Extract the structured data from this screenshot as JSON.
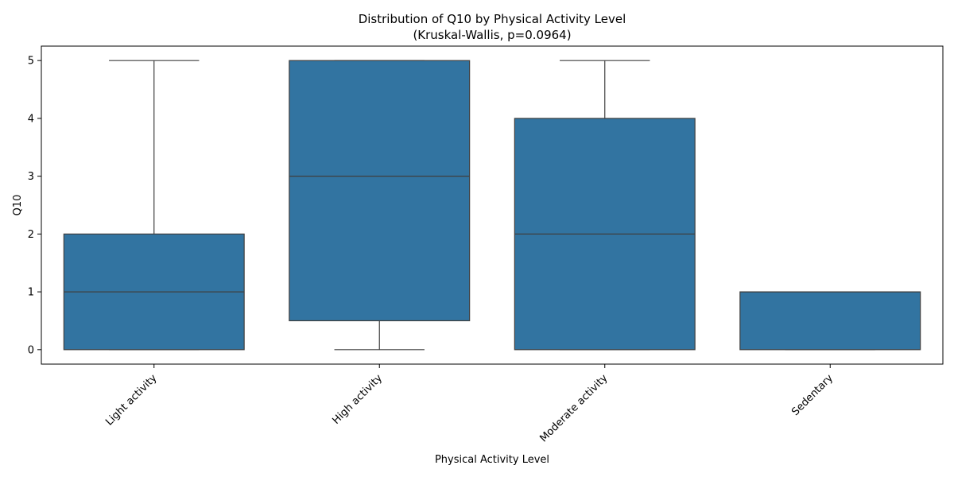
{
  "chart_data": {
    "type": "box",
    "title": "Distribution of Q10 by Physical Activity Level",
    "subtitle": "(Kruskal-Wallis, p=0.0964)",
    "xlabel": "Physical Activity Level",
    "ylabel": "Q10",
    "ylim": [
      -0.25,
      5.25
    ],
    "yticks": [
      0,
      1,
      2,
      3,
      4,
      5
    ],
    "grid": false,
    "legend": "none",
    "categories": [
      "Light activity",
      "High activity",
      "Moderate activity",
      "Sedentary"
    ],
    "boxes": [
      {
        "category": "Light activity",
        "whisker_low": 0,
        "q1": 0,
        "median": 1,
        "q3": 2,
        "whisker_high": 5
      },
      {
        "category": "High activity",
        "whisker_low": 0,
        "q1": 0.5,
        "median": 3,
        "q3": 5,
        "whisker_high": 5
      },
      {
        "category": "Moderate activity",
        "whisker_low": 0,
        "q1": 0,
        "median": 2,
        "q3": 4,
        "whisker_high": 5
      },
      {
        "category": "Sedentary",
        "whisker_low": 0,
        "q1": 0,
        "median": 1,
        "q3": 1,
        "whisker_high": 1
      }
    ],
    "colors": {
      "box_fill": "#3274a1",
      "line": "#3f3f3f"
    }
  }
}
